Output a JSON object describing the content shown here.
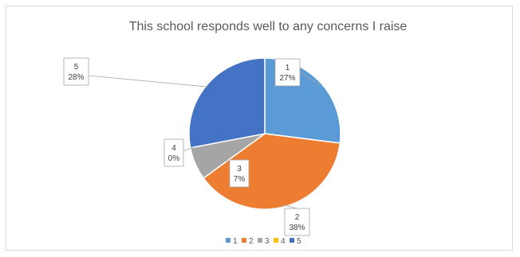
{
  "chart_data": {
    "type": "pie",
    "title": "This school responds well to any concerns I raise",
    "categories": [
      "1",
      "2",
      "3",
      "4",
      "5"
    ],
    "values": [
      27,
      38,
      7,
      0,
      28
    ],
    "value_labels": [
      "27%",
      "38%",
      "7%",
      "0%",
      "28%"
    ],
    "colors": [
      "#5b9bd5",
      "#ed7d31",
      "#a5a5a5",
      "#ffc000",
      "#4472c4"
    ],
    "start_angle_deg": 0,
    "direction": "clockwise",
    "legend_position": "bottom"
  }
}
